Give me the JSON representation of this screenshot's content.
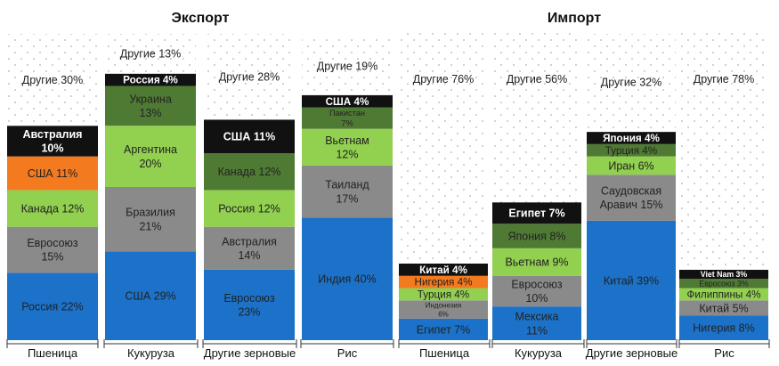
{
  "chart_data": [
    {
      "type": "bar",
      "stacked": true,
      "title": "Экспорт",
      "colors": {
        "Россия": "#1c72c9",
        "США": "#1c72c9",
        "Индия": "#1c72c9",
        "Евросоюз": "#1c72c9",
        "Евросоюз_gray": "#8a8a8a",
        "Бразилия": "#8a8a8a",
        "Австралия_gray": "#8a8a8a",
        "Таиланд": "#8a8a8a",
        "Канада_light": "#92d050",
        "Аргентина": "#92d050",
        "Россия_light": "#92d050",
        "Вьетнам": "#92d050",
        "США_orange": "#f47a20",
        "Канада_dark": "#4f7a34",
        "Украина": "#4f7a34",
        "Пакистан": "#4f7a34",
        "Австралия_black": "#111111",
        "Россия_black": "#111111",
        "США_black": "#111111",
        "США4_black": "#111111",
        "Другие": "dots"
      },
      "bars": [
        {
          "category": "Пшеница",
          "segments": [
            {
              "label": "Россия 22%",
              "value": 22,
              "color": "#1c72c9",
              "text": "dark"
            },
            {
              "label": "Евросоюз\n15%",
              "value": 15,
              "color": "#8a8a8a",
              "text": "dark"
            },
            {
              "label": "Канада 12%",
              "value": 12,
              "color": "#92d050",
              "text": "dark"
            },
            {
              "label": "США 11%",
              "value": 11,
              "color": "#f47a20",
              "text": "dark"
            },
            {
              "label": "Австралия\n10%",
              "value": 10,
              "color": "#111111",
              "text": "light"
            },
            {
              "label": "Другие 30%",
              "value": 30,
              "color": "dots",
              "text": "dark"
            }
          ]
        },
        {
          "category": "Кукуруза",
          "segments": [
            {
              "label": "США 29%",
              "value": 29,
              "color": "#1c72c9",
              "text": "dark"
            },
            {
              "label": "Бразилия\n21%",
              "value": 21,
              "color": "#8a8a8a",
              "text": "dark"
            },
            {
              "label": "Аргентина\n20%",
              "value": 20,
              "color": "#92d050",
              "text": "dark"
            },
            {
              "label": "Украина\n13%",
              "value": 13,
              "color": "#4f7a34",
              "text": "dark"
            },
            {
              "label": "Россия 4%",
              "value": 4,
              "color": "#111111",
              "text": "light"
            },
            {
              "label": "Другие 13%",
              "value": 13,
              "color": "dots",
              "text": "dark"
            }
          ]
        },
        {
          "category": "Другие зерновые",
          "segments": [
            {
              "label": "Евросоюз\n23%",
              "value": 23,
              "color": "#1c72c9",
              "text": "dark"
            },
            {
              "label": "Австралия\n14%",
              "value": 14,
              "color": "#8a8a8a",
              "text": "dark"
            },
            {
              "label": "Россия 12%",
              "value": 12,
              "color": "#92d050",
              "text": "dark"
            },
            {
              "label": "Канада 12%",
              "value": 12,
              "color": "#4f7a34",
              "text": "dark"
            },
            {
              "label": "США 11%",
              "value": 11,
              "color": "#111111",
              "text": "light"
            },
            {
              "label": "Другие 28%",
              "value": 28,
              "color": "dots",
              "text": "dark"
            }
          ]
        },
        {
          "category": "Рис",
          "segments": [
            {
              "label": "Индия 40%",
              "value": 40,
              "color": "#1c72c9",
              "text": "dark"
            },
            {
              "label": "Таиланд\n17%",
              "value": 17,
              "color": "#8a8a8a",
              "text": "dark"
            },
            {
              "label": "Вьетнам\n12%",
              "value": 12,
              "color": "#92d050",
              "text": "dark"
            },
            {
              "label": "Пакистан\n7%",
              "value": 7,
              "color": "#4f7a34",
              "text": "dark"
            },
            {
              "label": "США 4%",
              "value": 4,
              "color": "#111111",
              "text": "light"
            },
            {
              "label": "Другие 19%",
              "value": 19,
              "color": "dots",
              "text": "dark"
            }
          ]
        }
      ],
      "ylim": [
        0,
        100
      ],
      "grid": false,
      "legend": "none"
    },
    {
      "type": "bar",
      "stacked": true,
      "title": "Импорт",
      "bars": [
        {
          "category": "Пшеница",
          "segments": [
            {
              "label": "Египет 7%",
              "value": 7,
              "color": "#1c72c9",
              "text": "dark"
            },
            {
              "label": "Индонезия\n6%",
              "value": 6,
              "color": "#8a8a8a",
              "text": "dark"
            },
            {
              "label": "Турция 4%",
              "value": 4,
              "color": "#92d050",
              "text": "dark"
            },
            {
              "label": "Нигерия 4%",
              "value": 4,
              "color": "#f47a20",
              "text": "dark"
            },
            {
              "label": "Китай 4%",
              "value": 4,
              "color": "#111111",
              "text": "light"
            },
            {
              "label": "Другие 76%",
              "value": 76,
              "color": "dots",
              "text": "dark"
            }
          ]
        },
        {
          "category": "Кукуруза",
          "segments": [
            {
              "label": "Мексика\n11%",
              "value": 11,
              "color": "#1c72c9",
              "text": "dark"
            },
            {
              "label": "Евросоюз\n10%",
              "value": 10,
              "color": "#8a8a8a",
              "text": "dark"
            },
            {
              "label": "Вьетнам 9%",
              "value": 9,
              "color": "#92d050",
              "text": "dark"
            },
            {
              "label": "Япония 8%",
              "value": 8,
              "color": "#4f7a34",
              "text": "dark"
            },
            {
              "label": "Египет 7%",
              "value": 7,
              "color": "#111111",
              "text": "light"
            },
            {
              "label": "Другие 56%",
              "value": 56,
              "color": "dots",
              "text": "dark"
            }
          ]
        },
        {
          "category": "Другие зерновые",
          "segments": [
            {
              "label": "Китай 39%",
              "value": 39,
              "color": "#1c72c9",
              "text": "dark"
            },
            {
              "label": "Саудовская\nАравич 15%",
              "value": 15,
              "color": "#8a8a8a",
              "text": "dark"
            },
            {
              "label": "Иран 6%",
              "value": 6,
              "color": "#92d050",
              "text": "dark"
            },
            {
              "label": "Турция 4%",
              "value": 4,
              "color": "#4f7a34",
              "text": "dark"
            },
            {
              "label": "Япония 4%",
              "value": 4,
              "color": "#111111",
              "text": "light"
            },
            {
              "label": "Другие 32%",
              "value": 32,
              "color": "dots",
              "text": "dark"
            }
          ]
        },
        {
          "category": "Рис",
          "segments": [
            {
              "label": "Нигерия 8%",
              "value": 8,
              "color": "#1c72c9",
              "text": "dark"
            },
            {
              "label": "Китай 5%",
              "value": 5,
              "color": "#8a8a8a",
              "text": "dark"
            },
            {
              "label": "Филиппины 4%",
              "value": 4,
              "color": "#92d050",
              "text": "dark"
            },
            {
              "label": "Евросоюз 3%",
              "value": 3,
              "color": "#4f7a34",
              "text": "dark"
            },
            {
              "label": "Viet Nam 3%",
              "value": 3,
              "color": "#111111",
              "text": "light"
            },
            {
              "label": "Другие 78%",
              "value": 78,
              "color": "dots",
              "text": "dark"
            }
          ]
        }
      ],
      "ylim": [
        0,
        100
      ],
      "grid": false,
      "legend": "none"
    }
  ]
}
